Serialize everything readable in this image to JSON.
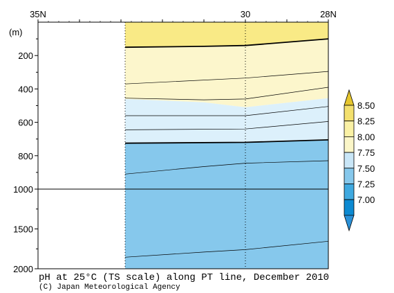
{
  "chart_data": {
    "type": "contour-section",
    "title": "pH at 25°C (TS scale) along PT line, December 2010",
    "credit": "(C) Japan Meteorological Agency",
    "y_unit_label": "(m)",
    "x_ticks": [
      {
        "lat": 35,
        "label": "35N"
      },
      {
        "lat": 30,
        "label": "30"
      },
      {
        "lat": 28,
        "label": "28N"
      }
    ],
    "y_ticks_upper": [
      200,
      400,
      600,
      800,
      1000
    ],
    "y_ticks_lower": [
      1500,
      2000
    ],
    "y_axis_break_depth": 1000,
    "data_extent": {
      "lat_start": 32.9,
      "lat_end": 28
    },
    "station_lats": [
      32.9,
      30,
      28
    ],
    "colorbar": {
      "labels": [
        "8.50",
        "8.25",
        "8.00",
        "7.75",
        "7.50",
        "7.25",
        "7.00"
      ],
      "colors": [
        "#e6c62e",
        "#f3e06e",
        "#faf1a5",
        "#fbf6c8",
        "#c9e6f7",
        "#86c8ec",
        "#3fa9e0",
        "#0c8ad2",
        "#2a91d8"
      ]
    },
    "bands": [
      {
        "range": ">8.25",
        "color": "#f9ea86",
        "lower": [
          [
            32.9,
            150
          ],
          [
            31,
            145
          ],
          [
            30,
            140
          ],
          [
            28,
            100
          ]
        ]
      },
      {
        "range": "8.00-8.25",
        "color": "#fcf6cc",
        "lower": [
          [
            32.9,
            460
          ],
          [
            31,
            480
          ],
          [
            30,
            510
          ],
          [
            28,
            455
          ]
        ]
      },
      {
        "range": "7.75-8.00",
        "color": "#dcf0fb",
        "lower": [
          [
            32.9,
            725
          ],
          [
            30,
            720
          ],
          [
            28,
            705
          ]
        ]
      },
      {
        "range": "7.50-7.75",
        "color": "#c9e6f7",
        "lower": [
          [
            32.9,
            725
          ],
          [
            30,
            720
          ],
          [
            28,
            705
          ]
        ]
      },
      {
        "range": "7.25-7.50",
        "color": "#86c8ec",
        "lower": null
      }
    ],
    "contours": [
      {
        "level": "8.25",
        "bold": true,
        "points": [
          [
            32.9,
            150
          ],
          [
            31,
            145
          ],
          [
            30,
            140
          ],
          [
            28,
            100
          ]
        ]
      },
      {
        "level": "thin",
        "bold": false,
        "points": [
          [
            32.9,
            370
          ],
          [
            30,
            335
          ],
          [
            28,
            295
          ]
        ]
      },
      {
        "level": "thin",
        "bold": false,
        "points": [
          [
            32.9,
            455
          ],
          [
            31,
            465
          ],
          [
            30,
            460
          ],
          [
            28,
            390
          ]
        ]
      },
      {
        "level": "thin",
        "bold": false,
        "points": [
          [
            32.9,
            560
          ],
          [
            30,
            560
          ],
          [
            28,
            505
          ]
        ]
      },
      {
        "level": "thin",
        "bold": false,
        "points": [
          [
            32.9,
            645
          ],
          [
            30,
            640
          ],
          [
            28,
            595
          ]
        ]
      },
      {
        "level": "7.50",
        "bold": true,
        "points": [
          [
            32.9,
            725
          ],
          [
            30,
            720
          ],
          [
            28,
            705
          ]
        ]
      },
      {
        "level": "thin",
        "bold": false,
        "points": [
          [
            32.9,
            910
          ],
          [
            31,
            865
          ],
          [
            30,
            845
          ],
          [
            28,
            830
          ]
        ]
      },
      {
        "level": "thin",
        "bold": false,
        "points": [
          [
            32.9,
            1855
          ],
          [
            31,
            1790
          ],
          [
            30,
            1760
          ],
          [
            28,
            1655
          ]
        ]
      }
    ]
  }
}
